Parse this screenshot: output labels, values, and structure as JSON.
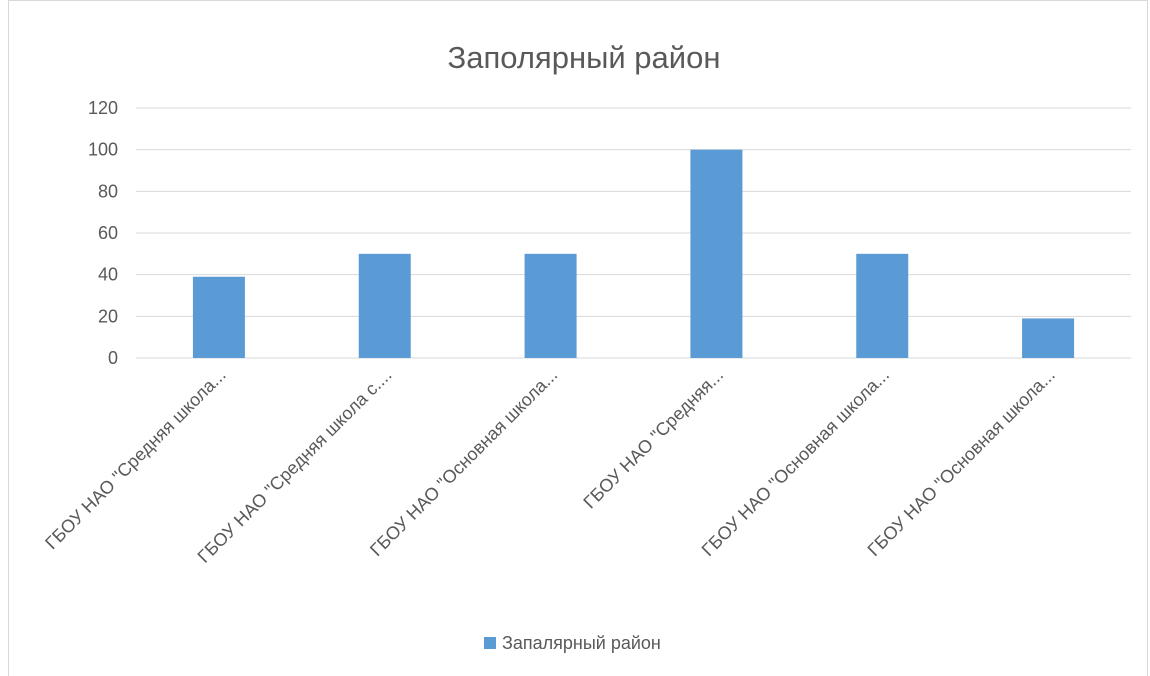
{
  "chart_data": {
    "type": "bar",
    "title": "Заполярный район",
    "categories": [
      "ГБОУ НАО \"Средняя школа...",
      "ГБОУ НАО \"Средняя школа с....",
      "ГБОУ НАО \"Основная школа...",
      "ГБОУ НАО \"Средняя...",
      "ГБОУ НАО \"Основная школа...",
      "ГБОУ НАО \"Основная школа..."
    ],
    "series": [
      {
        "name": "Запалярный район",
        "values": [
          39,
          50,
          50,
          100,
          50,
          19
        ],
        "color": "#5b9bd5"
      }
    ],
    "ylim": [
      0,
      120
    ],
    "yticks": [
      "0",
      "20",
      "40",
      "60",
      "80",
      "100",
      "120"
    ],
    "grid": true,
    "legend": "bottom",
    "xlabel": "",
    "ylabel": ""
  }
}
